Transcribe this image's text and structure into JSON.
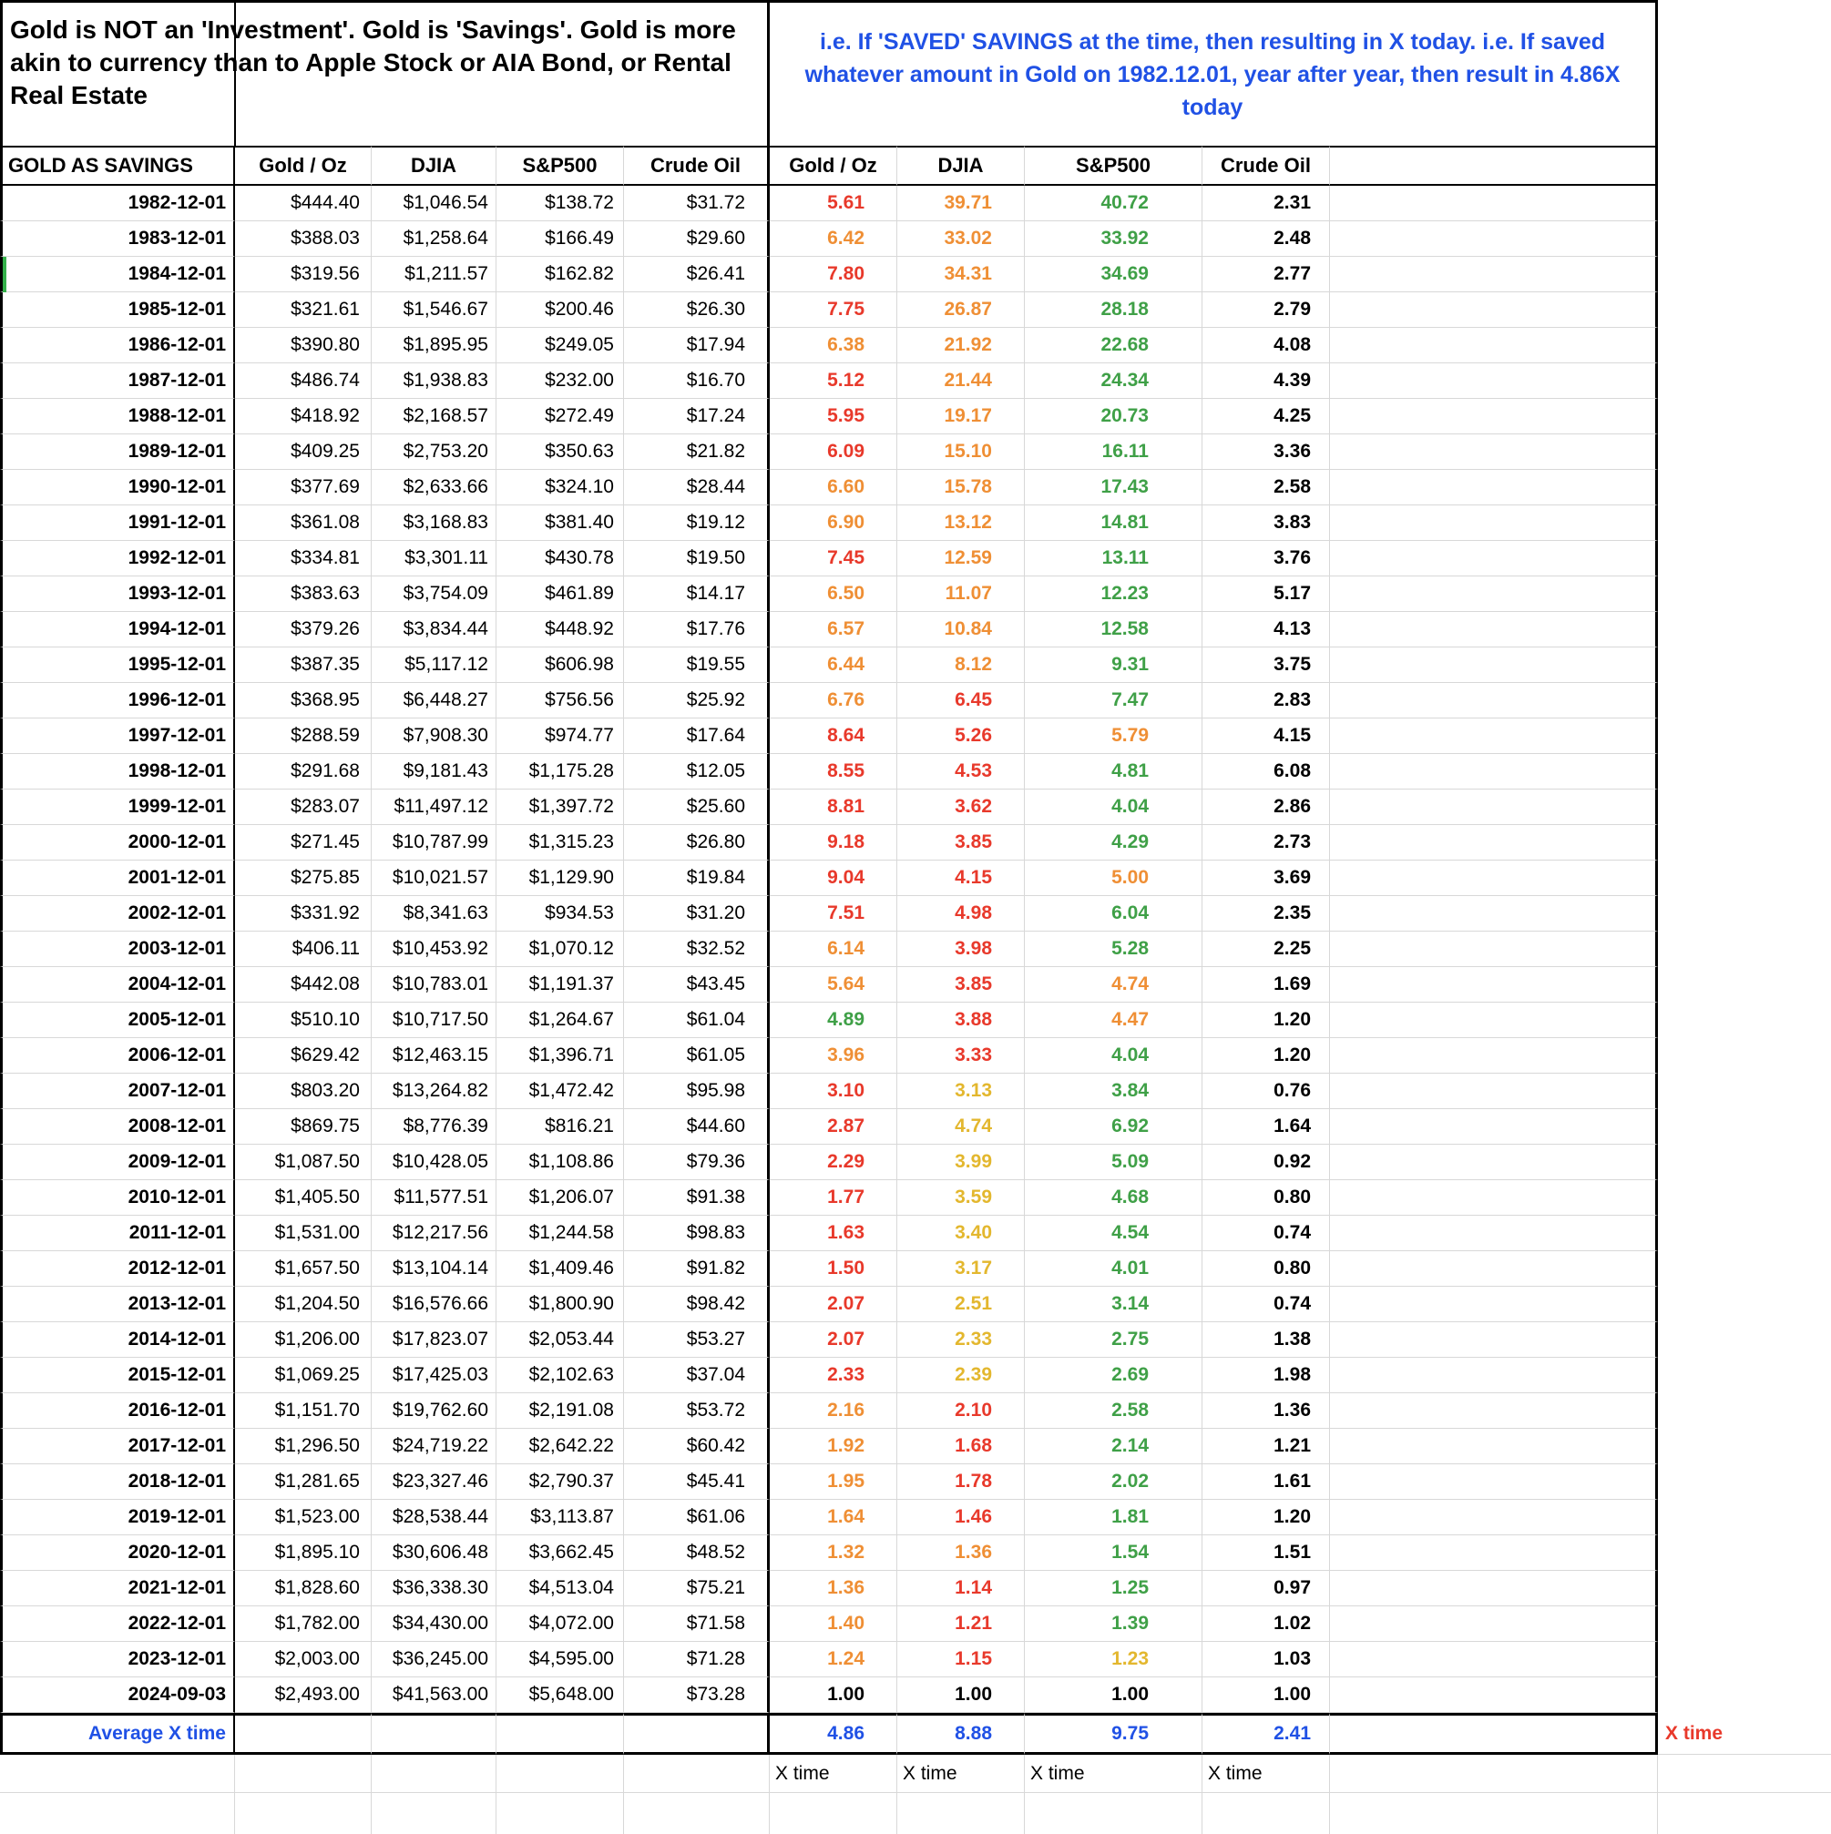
{
  "title": {
    "left": "Gold is NOT an 'Investment'. Gold is 'Savings'. Gold is more akin to currency than to Apple Stock or AIA Bond, or Rental Real Estate",
    "right": "i.e. If 'SAVED' SAVINGS at the time, then resulting in X today. i.e. If saved whatever amount in Gold on 1982.12.01, year after year, then result in 4.86X today"
  },
  "colors": {
    "red": "#e8392b",
    "orange": "#ef8f35",
    "yellow": "#e3b72e",
    "green": "#3fa047",
    "blue": "#2051e5",
    "black": "#000000",
    "grid": "#d8d8d8",
    "selection_green": "#34b14a"
  },
  "header": {
    "row_label": "GOLD AS SAVINGS",
    "price_cols": [
      "Gold / Oz",
      "DJIA",
      "S&P500",
      "Crude Oil"
    ],
    "x_cols": [
      "Gold / Oz",
      "DJIA",
      "S&P500",
      "Crude Oil"
    ]
  },
  "rows": [
    {
      "date": "1982-12-01",
      "prices": [
        "$444.40",
        "$1,046.54",
        "$138.72",
        "$31.72"
      ],
      "x": [
        "5.61",
        "39.71",
        "40.72",
        "2.31"
      ],
      "xc": [
        "r",
        "o",
        "g",
        "k"
      ]
    },
    {
      "date": "1983-12-01",
      "prices": [
        "$388.03",
        "$1,258.64",
        "$166.49",
        "$29.60"
      ],
      "x": [
        "6.42",
        "33.02",
        "33.92",
        "2.48"
      ],
      "xc": [
        "o",
        "o",
        "g",
        "k"
      ]
    },
    {
      "date": "1984-12-01",
      "prices": [
        "$319.56",
        "$1,211.57",
        "$162.82",
        "$26.41"
      ],
      "x": [
        "7.80",
        "34.31",
        "34.69",
        "2.77"
      ],
      "xc": [
        "r",
        "o",
        "g",
        "k"
      ]
    },
    {
      "date": "1985-12-01",
      "prices": [
        "$321.61",
        "$1,546.67",
        "$200.46",
        "$26.30"
      ],
      "x": [
        "7.75",
        "26.87",
        "28.18",
        "2.79"
      ],
      "xc": [
        "r",
        "o",
        "g",
        "k"
      ]
    },
    {
      "date": "1986-12-01",
      "prices": [
        "$390.80",
        "$1,895.95",
        "$249.05",
        "$17.94"
      ],
      "x": [
        "6.38",
        "21.92",
        "22.68",
        "4.08"
      ],
      "xc": [
        "o",
        "o",
        "g",
        "k"
      ]
    },
    {
      "date": "1987-12-01",
      "prices": [
        "$486.74",
        "$1,938.83",
        "$232.00",
        "$16.70"
      ],
      "x": [
        "5.12",
        "21.44",
        "24.34",
        "4.39"
      ],
      "xc": [
        "r",
        "o",
        "g",
        "k"
      ]
    },
    {
      "date": "1988-12-01",
      "prices": [
        "$418.92",
        "$2,168.57",
        "$272.49",
        "$17.24"
      ],
      "x": [
        "5.95",
        "19.17",
        "20.73",
        "4.25"
      ],
      "xc": [
        "r",
        "o",
        "g",
        "k"
      ]
    },
    {
      "date": "1989-12-01",
      "prices": [
        "$409.25",
        "$2,753.20",
        "$350.63",
        "$21.82"
      ],
      "x": [
        "6.09",
        "15.10",
        "16.11",
        "3.36"
      ],
      "xc": [
        "r",
        "o",
        "g",
        "k"
      ]
    },
    {
      "date": "1990-12-01",
      "prices": [
        "$377.69",
        "$2,633.66",
        "$324.10",
        "$28.44"
      ],
      "x": [
        "6.60",
        "15.78",
        "17.43",
        "2.58"
      ],
      "xc": [
        "o",
        "o",
        "g",
        "k"
      ]
    },
    {
      "date": "1991-12-01",
      "prices": [
        "$361.08",
        "$3,168.83",
        "$381.40",
        "$19.12"
      ],
      "x": [
        "6.90",
        "13.12",
        "14.81",
        "3.83"
      ],
      "xc": [
        "o",
        "o",
        "g",
        "k"
      ]
    },
    {
      "date": "1992-12-01",
      "prices": [
        "$334.81",
        "$3,301.11",
        "$430.78",
        "$19.50"
      ],
      "x": [
        "7.45",
        "12.59",
        "13.11",
        "3.76"
      ],
      "xc": [
        "r",
        "o",
        "g",
        "k"
      ]
    },
    {
      "date": "1993-12-01",
      "prices": [
        "$383.63",
        "$3,754.09",
        "$461.89",
        "$14.17"
      ],
      "x": [
        "6.50",
        "11.07",
        "12.23",
        "5.17"
      ],
      "xc": [
        "o",
        "o",
        "g",
        "k"
      ]
    },
    {
      "date": "1994-12-01",
      "prices": [
        "$379.26",
        "$3,834.44",
        "$448.92",
        "$17.76"
      ],
      "x": [
        "6.57",
        "10.84",
        "12.58",
        "4.13"
      ],
      "xc": [
        "o",
        "o",
        "g",
        "k"
      ]
    },
    {
      "date": "1995-12-01",
      "prices": [
        "$387.35",
        "$5,117.12",
        "$606.98",
        "$19.55"
      ],
      "x": [
        "6.44",
        "8.12",
        "9.31",
        "3.75"
      ],
      "xc": [
        "o",
        "o",
        "g",
        "k"
      ]
    },
    {
      "date": "1996-12-01",
      "prices": [
        "$368.95",
        "$6,448.27",
        "$756.56",
        "$25.92"
      ],
      "x": [
        "6.76",
        "6.45",
        "7.47",
        "2.83"
      ],
      "xc": [
        "o",
        "r",
        "g",
        "k"
      ]
    },
    {
      "date": "1997-12-01",
      "prices": [
        "$288.59",
        "$7,908.30",
        "$974.77",
        "$17.64"
      ],
      "x": [
        "8.64",
        "5.26",
        "5.79",
        "4.15"
      ],
      "xc": [
        "r",
        "r",
        "o",
        "k"
      ]
    },
    {
      "date": "1998-12-01",
      "prices": [
        "$291.68",
        "$9,181.43",
        "$1,175.28",
        "$12.05"
      ],
      "x": [
        "8.55",
        "4.53",
        "4.81",
        "6.08"
      ],
      "xc": [
        "r",
        "r",
        "g",
        "k"
      ]
    },
    {
      "date": "1999-12-01",
      "prices": [
        "$283.07",
        "$11,497.12",
        "$1,397.72",
        "$25.60"
      ],
      "x": [
        "8.81",
        "3.62",
        "4.04",
        "2.86"
      ],
      "xc": [
        "r",
        "r",
        "g",
        "k"
      ]
    },
    {
      "date": "2000-12-01",
      "prices": [
        "$271.45",
        "$10,787.99",
        "$1,315.23",
        "$26.80"
      ],
      "x": [
        "9.18",
        "3.85",
        "4.29",
        "2.73"
      ],
      "xc": [
        "r",
        "r",
        "g",
        "k"
      ]
    },
    {
      "date": "2001-12-01",
      "prices": [
        "$275.85",
        "$10,021.57",
        "$1,129.90",
        "$19.84"
      ],
      "x": [
        "9.04",
        "4.15",
        "5.00",
        "3.69"
      ],
      "xc": [
        "r",
        "r",
        "o",
        "k"
      ]
    },
    {
      "date": "2002-12-01",
      "prices": [
        "$331.92",
        "$8,341.63",
        "$934.53",
        "$31.20"
      ],
      "x": [
        "7.51",
        "4.98",
        "6.04",
        "2.35"
      ],
      "xc": [
        "r",
        "r",
        "g",
        "k"
      ]
    },
    {
      "date": "2003-12-01",
      "prices": [
        "$406.11",
        "$10,453.92",
        "$1,070.12",
        "$32.52"
      ],
      "x": [
        "6.14",
        "3.98",
        "5.28",
        "2.25"
      ],
      "xc": [
        "o",
        "r",
        "g",
        "k"
      ]
    },
    {
      "date": "2004-12-01",
      "prices": [
        "$442.08",
        "$10,783.01",
        "$1,191.37",
        "$43.45"
      ],
      "x": [
        "5.64",
        "3.85",
        "4.74",
        "1.69"
      ],
      "xc": [
        "o",
        "r",
        "o",
        "k"
      ]
    },
    {
      "date": "2005-12-01",
      "prices": [
        "$510.10",
        "$10,717.50",
        "$1,264.67",
        "$61.04"
      ],
      "x": [
        "4.89",
        "3.88",
        "4.47",
        "1.20"
      ],
      "xc": [
        "g",
        "r",
        "o",
        "k"
      ]
    },
    {
      "date": "2006-12-01",
      "prices": [
        "$629.42",
        "$12,463.15",
        "$1,396.71",
        "$61.05"
      ],
      "x": [
        "3.96",
        "3.33",
        "4.04",
        "1.20"
      ],
      "xc": [
        "o",
        "r",
        "g",
        "k"
      ]
    },
    {
      "date": "2007-12-01",
      "prices": [
        "$803.20",
        "$13,264.82",
        "$1,472.42",
        "$95.98"
      ],
      "x": [
        "3.10",
        "3.13",
        "3.84",
        "0.76"
      ],
      "xc": [
        "r",
        "y",
        "g",
        "k"
      ]
    },
    {
      "date": "2008-12-01",
      "prices": [
        "$869.75",
        "$8,776.39",
        "$816.21",
        "$44.60"
      ],
      "x": [
        "2.87",
        "4.74",
        "6.92",
        "1.64"
      ],
      "xc": [
        "r",
        "y",
        "g",
        "k"
      ]
    },
    {
      "date": "2009-12-01",
      "prices": [
        "$1,087.50",
        "$10,428.05",
        "$1,108.86",
        "$79.36"
      ],
      "x": [
        "2.29",
        "3.99",
        "5.09",
        "0.92"
      ],
      "xc": [
        "r",
        "y",
        "g",
        "k"
      ]
    },
    {
      "date": "2010-12-01",
      "prices": [
        "$1,405.50",
        "$11,577.51",
        "$1,206.07",
        "$91.38"
      ],
      "x": [
        "1.77",
        "3.59",
        "4.68",
        "0.80"
      ],
      "xc": [
        "r",
        "y",
        "g",
        "k"
      ]
    },
    {
      "date": "2011-12-01",
      "prices": [
        "$1,531.00",
        "$12,217.56",
        "$1,244.58",
        "$98.83"
      ],
      "x": [
        "1.63",
        "3.40",
        "4.54",
        "0.74"
      ],
      "xc": [
        "r",
        "y",
        "g",
        "k"
      ]
    },
    {
      "date": "2012-12-01",
      "prices": [
        "$1,657.50",
        "$13,104.14",
        "$1,409.46",
        "$91.82"
      ],
      "x": [
        "1.50",
        "3.17",
        "4.01",
        "0.80"
      ],
      "xc": [
        "r",
        "y",
        "g",
        "k"
      ]
    },
    {
      "date": "2013-12-01",
      "prices": [
        "$1,204.50",
        "$16,576.66",
        "$1,800.90",
        "$98.42"
      ],
      "x": [
        "2.07",
        "2.51",
        "3.14",
        "0.74"
      ],
      "xc": [
        "r",
        "y",
        "g",
        "k"
      ]
    },
    {
      "date": "2014-12-01",
      "prices": [
        "$1,206.00",
        "$17,823.07",
        "$2,053.44",
        "$53.27"
      ],
      "x": [
        "2.07",
        "2.33",
        "2.75",
        "1.38"
      ],
      "xc": [
        "r",
        "y",
        "g",
        "k"
      ]
    },
    {
      "date": "2015-12-01",
      "prices": [
        "$1,069.25",
        "$17,425.03",
        "$2,102.63",
        "$37.04"
      ],
      "x": [
        "2.33",
        "2.39",
        "2.69",
        "1.98"
      ],
      "xc": [
        "r",
        "y",
        "g",
        "k"
      ]
    },
    {
      "date": "2016-12-01",
      "prices": [
        "$1,151.70",
        "$19,762.60",
        "$2,191.08",
        "$53.72"
      ],
      "x": [
        "2.16",
        "2.10",
        "2.58",
        "1.36"
      ],
      "xc": [
        "o",
        "r",
        "g",
        "k"
      ]
    },
    {
      "date": "2017-12-01",
      "prices": [
        "$1,296.50",
        "$24,719.22",
        "$2,642.22",
        "$60.42"
      ],
      "x": [
        "1.92",
        "1.68",
        "2.14",
        "1.21"
      ],
      "xc": [
        "o",
        "r",
        "g",
        "k"
      ]
    },
    {
      "date": "2018-12-01",
      "prices": [
        "$1,281.65",
        "$23,327.46",
        "$2,790.37",
        "$45.41"
      ],
      "x": [
        "1.95",
        "1.78",
        "2.02",
        "1.61"
      ],
      "xc": [
        "o",
        "r",
        "g",
        "k"
      ]
    },
    {
      "date": "2019-12-01",
      "prices": [
        "$1,523.00",
        "$28,538.44",
        "$3,113.87",
        "$61.06"
      ],
      "x": [
        "1.64",
        "1.46",
        "1.81",
        "1.20"
      ],
      "xc": [
        "o",
        "r",
        "g",
        "k"
      ]
    },
    {
      "date": "2020-12-01",
      "prices": [
        "$1,895.10",
        "$30,606.48",
        "$3,662.45",
        "$48.52"
      ],
      "x": [
        "1.32",
        "1.36",
        "1.54",
        "1.51"
      ],
      "xc": [
        "o",
        "o",
        "g",
        "k"
      ]
    },
    {
      "date": "2021-12-01",
      "prices": [
        "$1,828.60",
        "$36,338.30",
        "$4,513.04",
        "$75.21"
      ],
      "x": [
        "1.36",
        "1.14",
        "1.25",
        "0.97"
      ],
      "xc": [
        "o",
        "r",
        "g",
        "k"
      ]
    },
    {
      "date": "2022-12-01",
      "prices": [
        "$1,782.00",
        "$34,430.00",
        "$4,072.00",
        "$71.58"
      ],
      "x": [
        "1.40",
        "1.21",
        "1.39",
        "1.02"
      ],
      "xc": [
        "o",
        "r",
        "g",
        "k"
      ]
    },
    {
      "date": "2023-12-01",
      "prices": [
        "$2,003.00",
        "$36,245.00",
        "$4,595.00",
        "$71.28"
      ],
      "x": [
        "1.24",
        "1.15",
        "1.23",
        "1.03"
      ],
      "xc": [
        "o",
        "r",
        "y",
        "k"
      ]
    },
    {
      "date": "2024-09-03",
      "prices": [
        "$2,493.00",
        "$41,563.00",
        "$5,648.00",
        "$73.28"
      ],
      "x": [
        "1.00",
        "1.00",
        "1.00",
        "1.00"
      ],
      "xc": [
        "k",
        "k",
        "k",
        "k"
      ]
    }
  ],
  "footer": {
    "average_label": "Average X time",
    "averages": [
      "4.86",
      "8.88",
      "9.75",
      "2.41"
    ],
    "x_time_flag": "X time",
    "x_time_labels": [
      "X time",
      "X time",
      "X time",
      "X time"
    ]
  }
}
